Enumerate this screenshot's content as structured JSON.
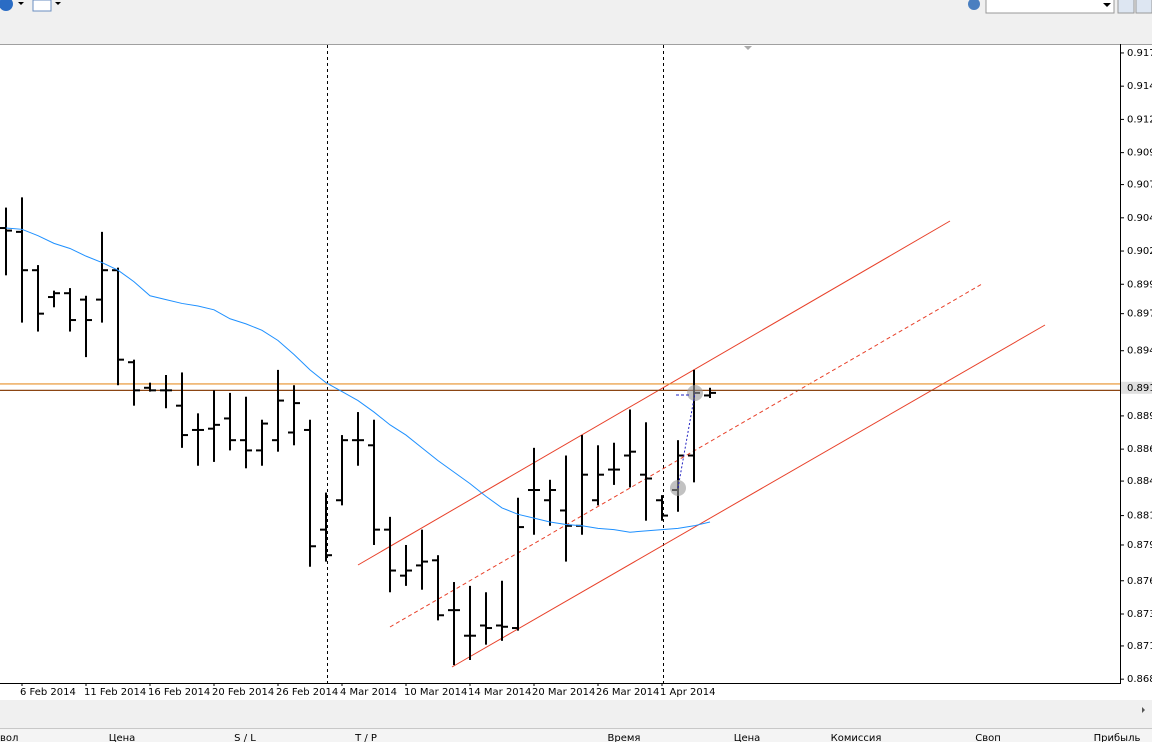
{
  "chart_data": {
    "type": "ohlc",
    "categories": [
      null,
      "6 Feb 2014",
      null,
      null,
      null,
      "11 Feb 2014",
      null,
      null,
      null,
      "16 Feb 2014",
      null,
      null,
      null,
      "20 Feb 2014",
      null,
      null,
      null,
      "26 Feb 2014",
      null,
      null,
      null,
      "4 Mar 2014",
      null,
      null,
      null,
      "10 Mar 2014",
      null,
      null,
      null,
      "14 Mar 2014",
      null,
      null,
      null,
      "20 Mar 2014",
      null,
      null,
      null,
      "26 Mar 2014",
      null,
      null,
      null,
      "1 Apr 2014",
      null,
      null,
      null
    ],
    "open": [
      0.9033,
      0.903,
      0.9,
      0.8979,
      0.8982,
      0.8977,
      0.8977,
      0.9,
      0.8928,
      0.8908,
      0.8906,
      0.8894,
      0.8875,
      0.8876,
      0.8884,
      0.8867,
      0.8859,
      0.8867,
      0.8873,
      0.8875,
      0.8797,
      0.882,
      0.8867,
      0.8863,
      0.8797,
      0.8761,
      0.8769,
      0.8773,
      0.8734,
      0.8714,
      0.8722,
      0.8722,
      0.872,
      0.8828,
      0.882,
      0.8812,
      0.88,
      0.882,
      0.8844,
      0.8855,
      0.884,
      0.882,
      0.8828,
      0.8855,
      0.8902
    ],
    "high": [
      0.9049,
      0.9057,
      0.9004,
      0.8984,
      0.8986,
      0.898,
      0.903,
      0.9002,
      0.893,
      0.8912,
      0.8918,
      0.892,
      0.8888,
      0.8906,
      0.8904,
      0.8901,
      0.8883,
      0.8922,
      0.891,
      0.8883,
      0.8826,
      0.8871,
      0.8889,
      0.8883,
      0.8807,
      0.8785,
      0.8797,
      0.8777,
      0.8756,
      0.8753,
      0.8748,
      0.8757,
      0.8822,
      0.8861,
      0.8836,
      0.8855,
      0.8871,
      0.8863,
      0.8865,
      0.8891,
      0.8881,
      0.8824,
      0.8867,
      0.8922,
      0.8908
    ],
    "low": [
      0.8996,
      0.8959,
      0.8952,
      0.8971,
      0.8952,
      0.8932,
      0.8959,
      0.891,
      0.8894,
      0.8905,
      0.8892,
      0.8861,
      0.8847,
      0.885,
      0.8859,
      0.8845,
      0.8847,
      0.8858,
      0.8863,
      0.8768,
      0.8772,
      0.8816,
      0.8847,
      0.8785,
      0.8748,
      0.8753,
      0.875,
      0.8726,
      0.8691,
      0.8695,
      0.8707,
      0.871,
      0.8718,
      0.8793,
      0.88,
      0.8772,
      0.8793,
      0.8816,
      0.8832,
      0.883,
      0.8804,
      0.8804,
      0.8811,
      0.8834,
      0.89
    ],
    "close": [
      0.9031,
      0.9,
      0.8966,
      0.8982,
      0.8961,
      0.8961,
      0.9,
      0.893,
      0.8906,
      0.8906,
      0.8906,
      0.8871,
      0.8875,
      0.8879,
      0.8867,
      0.8859,
      0.888,
      0.8898,
      0.8896,
      0.8784,
      0.8777,
      0.8867,
      0.8867,
      0.8797,
      0.8765,
      0.8765,
      0.8772,
      0.873,
      0.8734,
      0.8714,
      0.872,
      0.8721,
      0.8799,
      0.8828,
      0.8828,
      0.88,
      0.884,
      0.884,
      0.8844,
      0.8858,
      0.8837,
      0.8808,
      0.8855,
      0.8904,
      0.8904
    ],
    "ma": {
      "color": "#1e90ff",
      "values": [
        0.9033,
        0.9032,
        0.9027,
        0.9021,
        0.9017,
        0.9011,
        0.9006,
        0.9,
        0.8991,
        0.898,
        0.8977,
        0.8974,
        0.8972,
        0.8969,
        0.8962,
        0.8958,
        0.8953,
        0.8945,
        0.8934,
        0.8922,
        0.8912,
        0.8905,
        0.8898,
        0.8889,
        0.8879,
        0.8871,
        0.8861,
        0.8851,
        0.8842,
        0.8833,
        0.8823,
        0.8814,
        0.8809,
        0.8806,
        0.8803,
        0.8801,
        0.88,
        0.8798,
        0.8797,
        0.8795,
        0.8796,
        0.8797,
        0.8798,
        0.88,
        0.8803
      ]
    },
    "ylim": [
      0.8677,
      0.9177
    ],
    "yticks": [
      0.917,
      {
        "value": 0.9144,
        "label": "0.914"
      },
      {
        "value": 0.9118,
        "label": "0.912"
      },
      {
        "value": 0.9092,
        "label": "0.909"
      },
      {
        "value": 0.9067,
        "label": "0.907"
      },
      {
        "value": 0.9041,
        "label": "0.904"
      },
      {
        "value": 0.9015,
        "label": "0.902"
      },
      {
        "value": 0.8989,
        "label": "0.899"
      },
      {
        "value": 0.8966,
        "label": "0.897"
      },
      {
        "value": 0.8937,
        "label": "0.894"
      },
      {
        "value": 0.8886,
        "label": "0.889"
      },
      {
        "value": 0.886,
        "label": "0.886"
      },
      {
        "value": 0.8835,
        "label": "0.884"
      },
      {
        "value": 0.8808,
        "label": "0.881"
      },
      {
        "value": 0.8785,
        "label": "0.879"
      },
      {
        "value": 0.8757,
        "label": "0.876"
      },
      {
        "value": 0.8731,
        "label": "0.873"
      },
      {
        "value": 0.8706,
        "label": "0.871"
      },
      {
        "value": 0.868,
        "label": "0.868"
      }
    ],
    "price_lines": [
      {
        "value": 0.8911,
        "color": "#e8902a"
      },
      {
        "value": 0.8906,
        "color": "#8b4513"
      }
    ],
    "price_label": {
      "value": 0.8908,
      "label": "0.891"
    }
  },
  "terminal": {
    "columns": [
      "вол",
      "Цена",
      "S / L",
      "T / P",
      "Время",
      "Цена",
      "Комиссия",
      "Своп",
      "Прибыль"
    ]
  }
}
